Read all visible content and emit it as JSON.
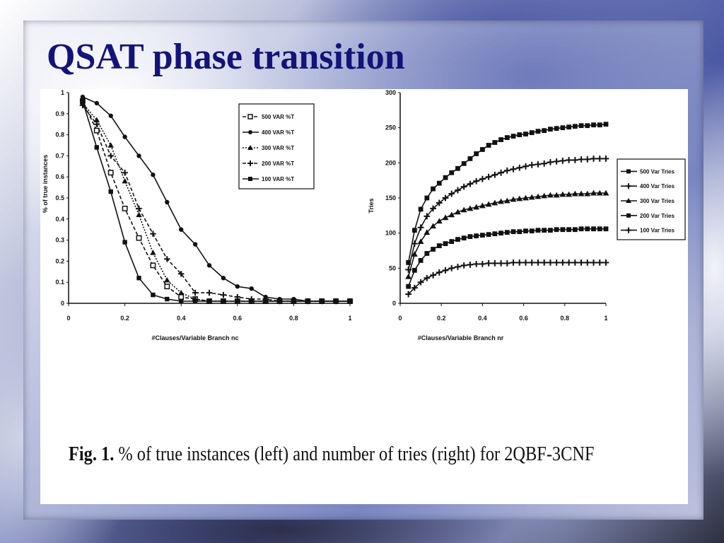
{
  "slide": {
    "title": "QSAT phase transition",
    "caption": {
      "label": "Fig. 1.",
      "text": "% of true instances (left) and number of tries (right) for 2QBF-3CNF"
    }
  },
  "chart_data": [
    {
      "type": "line",
      "xlabel": "#Clauses/Variable Branch nc",
      "ylabel": "% of true instances",
      "xlim": [
        0,
        1
      ],
      "ylim": [
        0,
        1
      ],
      "xticks": [
        "0",
        "0.2",
        "0.4",
        "0.6",
        "0.8",
        "1"
      ],
      "yticks": [
        "0",
        "0.1",
        "0.2",
        "0.3",
        "0.4",
        "0.5",
        "0.6",
        "0.7",
        "0.8",
        "0.9",
        "1"
      ],
      "grid": false,
      "legend": "top-right",
      "x": [
        0.05,
        0.1,
        0.15,
        0.2,
        0.25,
        0.3,
        0.35,
        0.4,
        0.45,
        0.5,
        0.55,
        0.6,
        0.65,
        0.7,
        0.75,
        0.8,
        0.85,
        0.9,
        0.95,
        1.0
      ],
      "series": [
        {
          "name": "500 VAR %T",
          "marker": "square-open",
          "dash": "dash",
          "values": [
            0.96,
            0.82,
            0.62,
            0.45,
            0.31,
            0.18,
            0.08,
            0.03,
            0.02,
            0.01,
            0.01,
            0.01,
            0.01,
            0.01,
            0.01,
            0.01,
            0.01,
            0.01,
            0.01,
            0.01
          ]
        },
        {
          "name": "400 VAR %T",
          "marker": "circle",
          "dash": "solid",
          "values": [
            0.98,
            0.95,
            0.89,
            0.79,
            0.7,
            0.61,
            0.48,
            0.35,
            0.28,
            0.18,
            0.12,
            0.08,
            0.07,
            0.03,
            0.02,
            0.02,
            0.01,
            0.01,
            0.01,
            0.01
          ]
        },
        {
          "name": "300 VAR %T",
          "marker": "triangle",
          "dash": "dot",
          "values": [
            0.95,
            0.87,
            0.75,
            0.58,
            0.42,
            0.24,
            0.11,
            0.05,
            0.02,
            0.01,
            0.01,
            0.01,
            0.01,
            0.01,
            0.01,
            0.01,
            0.01,
            0.01,
            0.01,
            0.01
          ]
        },
        {
          "name": "200 VAR %T",
          "marker": "plus",
          "dash": "dash",
          "values": [
            0.94,
            0.85,
            0.7,
            0.62,
            0.45,
            0.33,
            0.21,
            0.14,
            0.05,
            0.05,
            0.04,
            0.03,
            0.02,
            0.02,
            0.01,
            0.01,
            0.01,
            0.01,
            0.01,
            0.01
          ]
        },
        {
          "name": "100 VAR %T",
          "marker": "square",
          "dash": "solid",
          "values": [
            0.96,
            0.74,
            0.53,
            0.29,
            0.12,
            0.04,
            0.02,
            0.01,
            0.01,
            0.01,
            0.01,
            0.01,
            0.01,
            0.01,
            0.01,
            0.01,
            0.01,
            0.01,
            0.01,
            0.01
          ]
        }
      ]
    },
    {
      "type": "line",
      "xlabel": "#Clauses/Variable Branch nr",
      "ylabel": "Tries",
      "xlim": [
        0,
        1
      ],
      "ylim": [
        0,
        300
      ],
      "xticks": [
        "0",
        "0.2",
        "0.4",
        "0.6",
        "0.8",
        "1"
      ],
      "yticks": [
        "0",
        "50",
        "100",
        "150",
        "200",
        "250",
        "300"
      ],
      "grid": false,
      "legend": "right",
      "x": [
        0.04,
        0.07,
        0.1,
        0.13,
        0.16,
        0.19,
        0.22,
        0.25,
        0.28,
        0.31,
        0.34,
        0.37,
        0.4,
        0.43,
        0.46,
        0.49,
        0.52,
        0.55,
        0.58,
        0.61,
        0.64,
        0.67,
        0.7,
        0.73,
        0.76,
        0.79,
        0.82,
        0.85,
        0.88,
        0.91,
        0.94,
        0.97,
        1.0
      ],
      "series": [
        {
          "name": "500 Var Tries",
          "marker": "square",
          "values": [
            58,
            104,
            134,
            150,
            163,
            171,
            179,
            186,
            192,
            199,
            206,
            213,
            219,
            225,
            229,
            233,
            236,
            238,
            240,
            241,
            243,
            245,
            246,
            248,
            249,
            250,
            251,
            252,
            253,
            253,
            254,
            254,
            255
          ]
        },
        {
          "name": "400 Var Tries",
          "marker": "plus",
          "values": [
            48,
            85,
            108,
            124,
            135,
            143,
            150,
            156,
            161,
            166,
            170,
            174,
            177,
            180,
            183,
            186,
            189,
            191,
            193,
            195,
            197,
            198,
            199,
            201,
            202,
            203,
            204,
            204,
            205,
            205,
            206,
            206,
            206
          ]
        },
        {
          "name": "300 Var Tries",
          "marker": "triangle",
          "values": [
            38,
            70,
            88,
            101,
            110,
            117,
            122,
            126,
            130,
            133,
            135,
            137,
            139,
            141,
            143,
            145,
            146,
            148,
            149,
            150,
            151,
            152,
            153,
            154,
            154,
            155,
            155,
            156,
            156,
            156,
            157,
            157,
            157
          ]
        },
        {
          "name": "200 Var Tries",
          "marker": "square",
          "values": [
            24,
            47,
            61,
            71,
            77,
            82,
            85,
            88,
            91,
            93,
            95,
            96,
            97,
            98,
            99,
            100,
            101,
            102,
            102,
            103,
            103,
            104,
            104,
            104,
            105,
            105,
            105,
            105,
            106,
            106,
            106,
            106,
            106
          ]
        },
        {
          "name": "100 Var Tries",
          "marker": "plus",
          "values": [
            13,
            22,
            30,
            36,
            40,
            44,
            47,
            50,
            52,
            54,
            55,
            56,
            56,
            57,
            57,
            57,
            57,
            58,
            58,
            58,
            58,
            58,
            58,
            58,
            58,
            58,
            58,
            58,
            58,
            58,
            58,
            58,
            58
          ]
        }
      ]
    }
  ]
}
